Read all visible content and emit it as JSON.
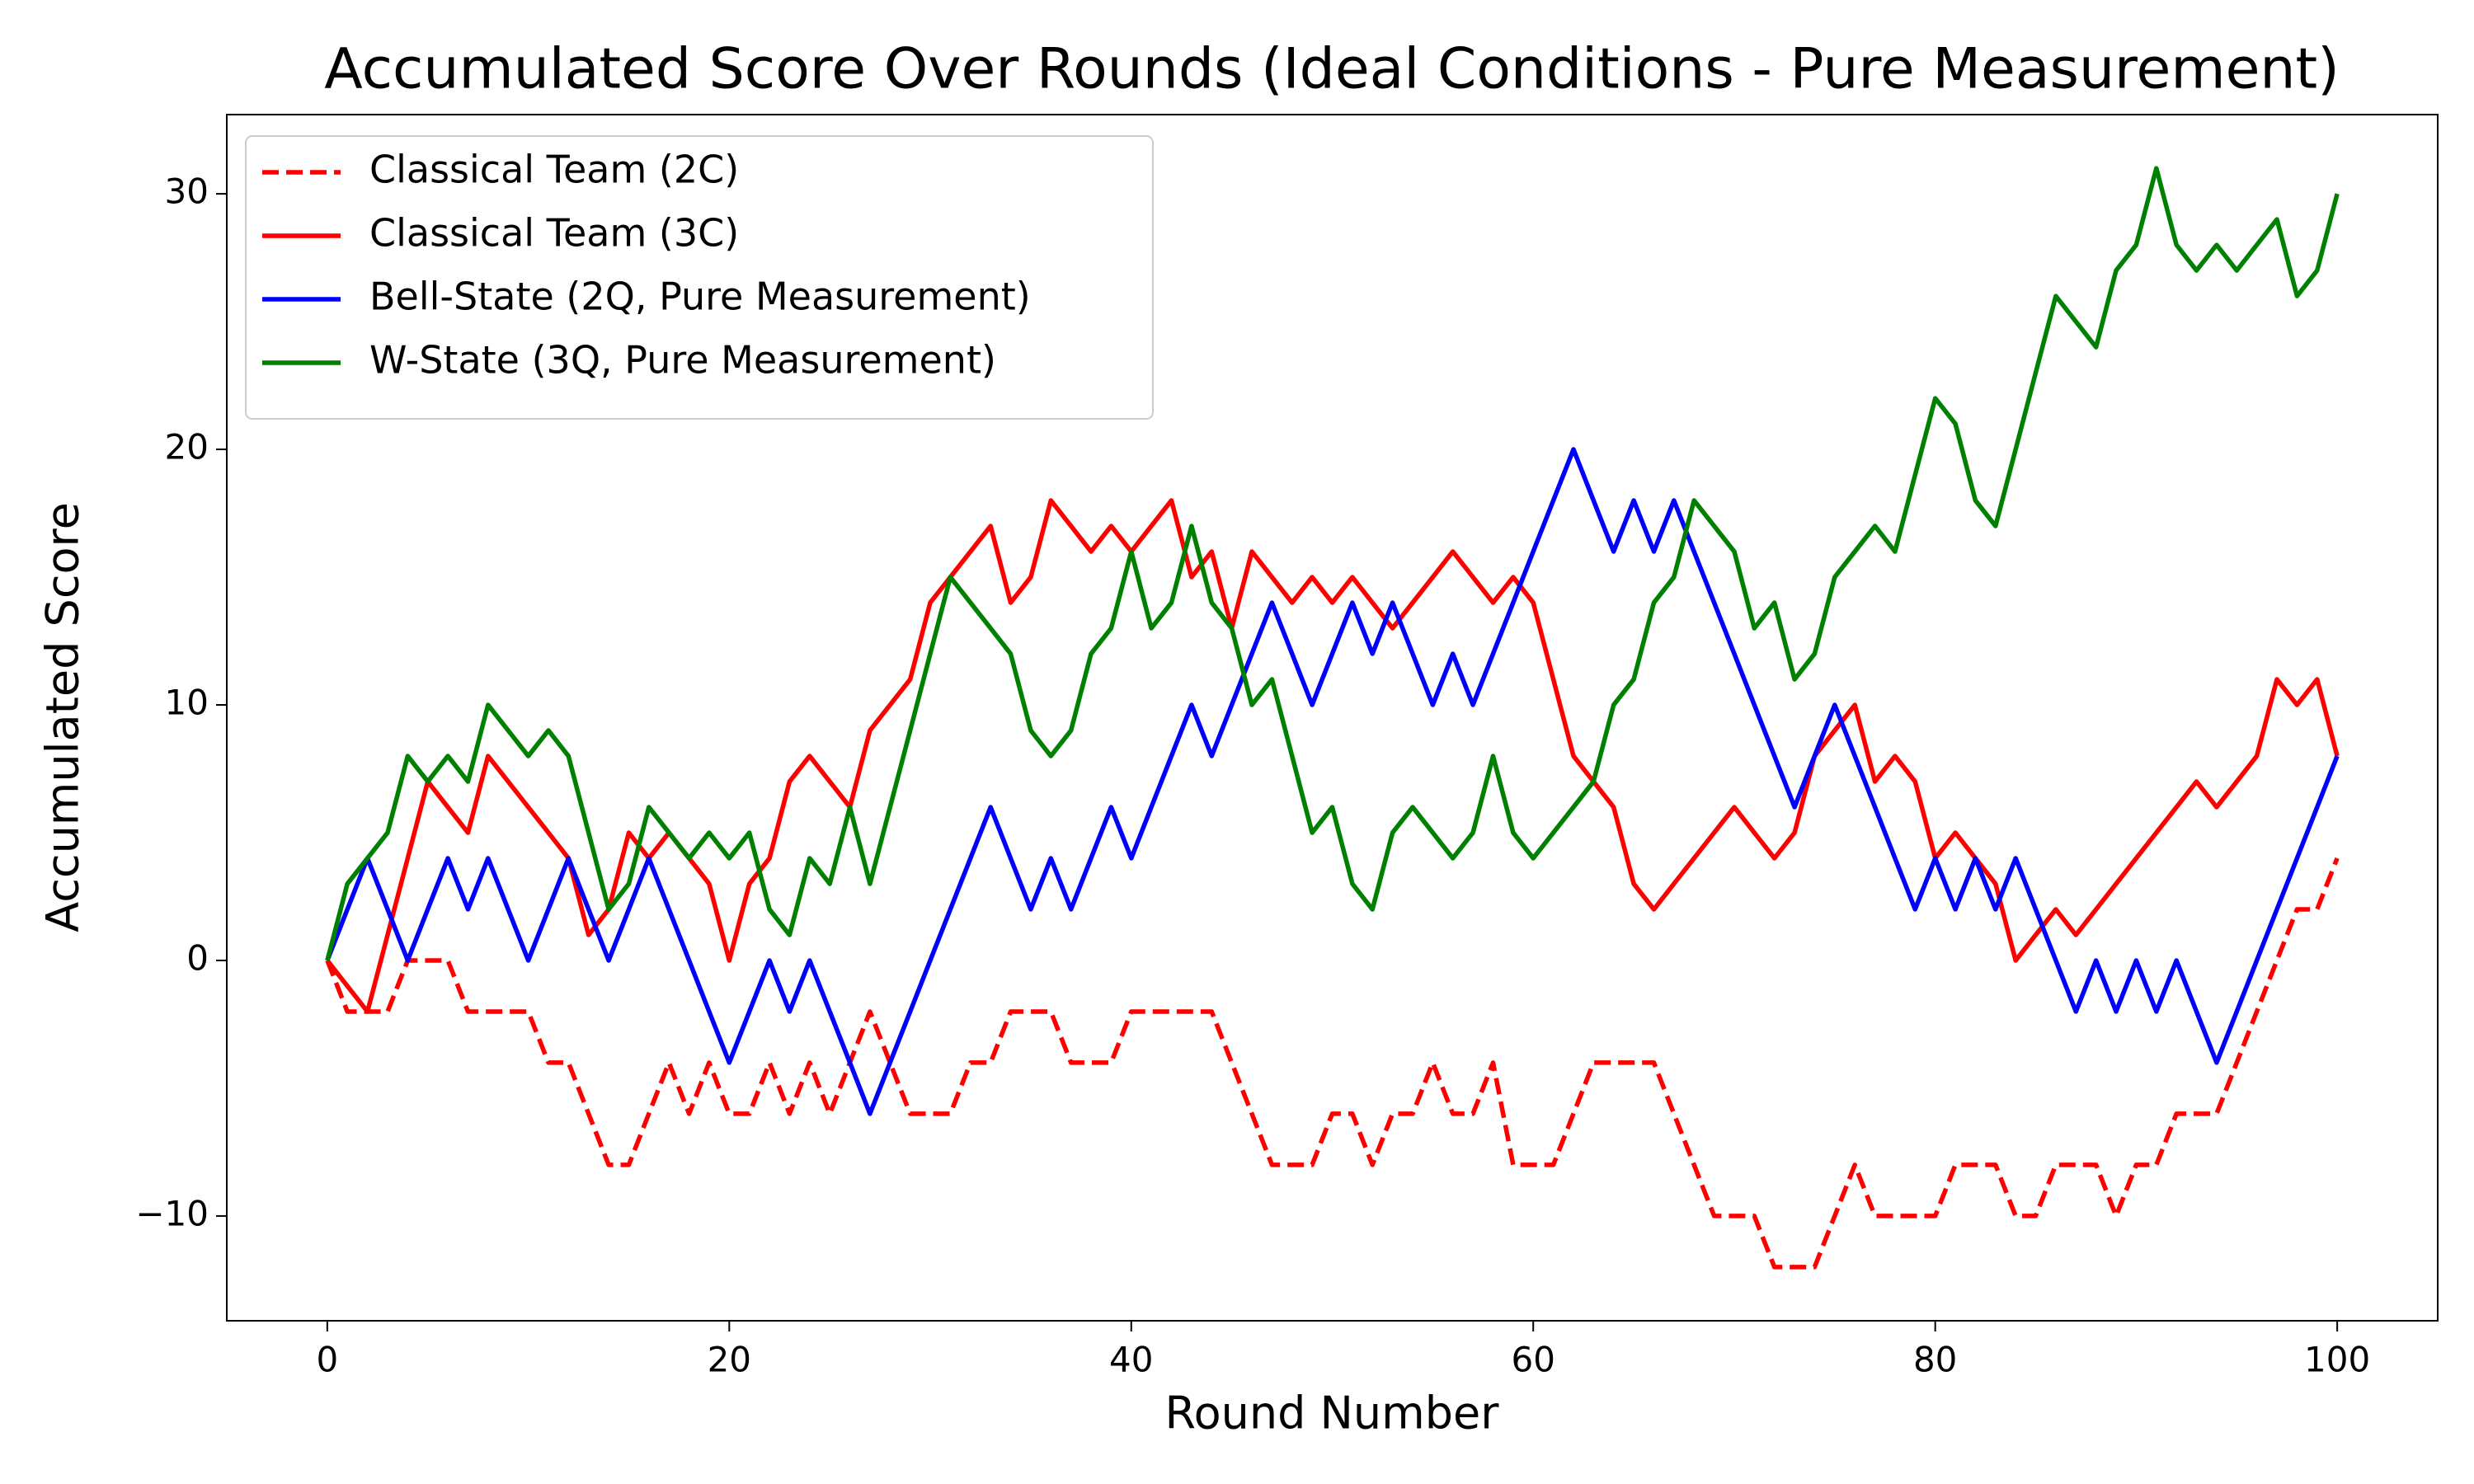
{
  "chart_data": {
    "type": "line",
    "title": "Accumulated Score Over Rounds (Ideal Conditions - Pure Measurement)",
    "x_label": "Round Number",
    "y_label": "Accumulated Score",
    "x": [
      0,
      1,
      2,
      3,
      4,
      5,
      6,
      7,
      8,
      9,
      10,
      11,
      12,
      13,
      14,
      15,
      16,
      17,
      18,
      19,
      20,
      21,
      22,
      23,
      24,
      25,
      26,
      27,
      28,
      29,
      30,
      31,
      32,
      33,
      34,
      35,
      36,
      37,
      38,
      39,
      40,
      41,
      42,
      43,
      44,
      45,
      46,
      47,
      48,
      49,
      50,
      51,
      52,
      53,
      54,
      55,
      56,
      57,
      58,
      59,
      60,
      61,
      62,
      63,
      64,
      65,
      66,
      67,
      68,
      69,
      70,
      71,
      72,
      73,
      74,
      75,
      76,
      77,
      78,
      79,
      80,
      81,
      82,
      83,
      84,
      85,
      86,
      87,
      88,
      89,
      90,
      91,
      92,
      93,
      94,
      95,
      96,
      97,
      98,
      99,
      100
    ],
    "series": [
      {
        "name": "Classical Team (2C)",
        "color": "#ff0000",
        "linestyle": "dashed",
        "values": [
          0,
          -2,
          -2,
          -2,
          0,
          0,
          0,
          -2,
          -2,
          -2,
          -2,
          -4,
          -4,
          -6,
          -8,
          -8,
          -6,
          -4,
          -6,
          -4,
          -6,
          -6,
          -4,
          -6,
          -4,
          -6,
          -4,
          -2,
          -4,
          -6,
          -6,
          -6,
          -4,
          -4,
          -2,
          -2,
          -2,
          -4,
          -4,
          -4,
          -2,
          -2,
          -2,
          -2,
          -2,
          -4,
          -6,
          -8,
          -8,
          -8,
          -6,
          -6,
          -8,
          -6,
          -6,
          -4,
          -6,
          -6,
          -4,
          -8,
          -8,
          -8,
          -6,
          -4,
          -4,
          -4,
          -4,
          -6,
          -8,
          -10,
          -10,
          -10,
          -12,
          -12,
          -12,
          -10,
          -8,
          -10,
          -10,
          -10,
          -10,
          -8,
          -8,
          -8,
          -10,
          -10,
          -8,
          -8,
          -8,
          -10,
          -8,
          -8,
          -6,
          -6,
          -6,
          -4,
          -2,
          0,
          2,
          2,
          4
        ]
      },
      {
        "name": "Classical Team (3C)",
        "color": "#ff0000",
        "linestyle": "solid",
        "values": [
          0,
          -1,
          -2,
          1,
          4,
          7,
          6,
          5,
          8,
          7,
          6,
          5,
          4,
          1,
          2,
          5,
          4,
          5,
          4,
          3,
          0,
          3,
          4,
          7,
          8,
          7,
          6,
          9,
          10,
          11,
          14,
          15,
          16,
          17,
          14,
          15,
          18,
          17,
          16,
          17,
          16,
          17,
          18,
          15,
          16,
          13,
          16,
          15,
          14,
          15,
          14,
          15,
          14,
          13,
          14,
          15,
          16,
          15,
          14,
          15,
          14,
          11,
          8,
          7,
          6,
          3,
          2,
          3,
          4,
          5,
          6,
          5,
          4,
          5,
          8,
          9,
          10,
          7,
          8,
          7,
          4,
          5,
          4,
          3,
          0,
          1,
          2,
          1,
          2,
          3,
          4,
          5,
          6,
          7,
          6,
          7,
          8,
          11,
          10,
          11,
          8
        ]
      },
      {
        "name": "Bell-State (2Q, Pure Measurement)",
        "color": "#0000ff",
        "linestyle": "solid",
        "values": [
          0,
          2,
          4,
          2,
          0,
          2,
          4,
          2,
          4,
          2,
          0,
          2,
          4,
          2,
          0,
          2,
          4,
          2,
          0,
          -2,
          -4,
          -2,
          0,
          -2,
          0,
          -2,
          -4,
          -6,
          -4,
          -2,
          0,
          2,
          4,
          6,
          4,
          2,
          4,
          2,
          4,
          6,
          4,
          6,
          8,
          10,
          8,
          10,
          12,
          14,
          12,
          10,
          12,
          14,
          12,
          14,
          12,
          10,
          12,
          10,
          12,
          14,
          16,
          18,
          20,
          18,
          16,
          18,
          16,
          18,
          16,
          14,
          12,
          10,
          8,
          6,
          8,
          10,
          8,
          6,
          4,
          2,
          4,
          2,
          4,
          2,
          4,
          2,
          0,
          -2,
          0,
          -2,
          0,
          -2,
          0,
          -2,
          -4,
          -2,
          0,
          2,
          4,
          6,
          8
        ]
      },
      {
        "name": "W-State (3Q, Pure Measurement)",
        "color": "#008000",
        "linestyle": "solid",
        "values": [
          0,
          3,
          4,
          5,
          8,
          7,
          8,
          7,
          10,
          9,
          8,
          9,
          8,
          5,
          2,
          3,
          6,
          5,
          4,
          5,
          4,
          5,
          2,
          1,
          4,
          3,
          6,
          3,
          6,
          9,
          12,
          15,
          14,
          13,
          12,
          9,
          8,
          9,
          12,
          13,
          16,
          13,
          14,
          17,
          14,
          13,
          10,
          11,
          8,
          5,
          6,
          3,
          2,
          5,
          6,
          5,
          4,
          5,
          8,
          5,
          4,
          5,
          6,
          7,
          10,
          11,
          14,
          15,
          18,
          17,
          16,
          13,
          14,
          11,
          12,
          15,
          16,
          17,
          16,
          19,
          22,
          21,
          18,
          17,
          20,
          23,
          26,
          25,
          24,
          27,
          28,
          31,
          28,
          27,
          28,
          27,
          28,
          29,
          26,
          27,
          30
        ]
      }
    ],
    "xlim": [
      -5,
      105
    ],
    "ylim": [
      -14.1,
      33.1
    ],
    "xticks": [
      0,
      20,
      40,
      60,
      80,
      100
    ],
    "yticks": [
      {
        "value": -10,
        "label": "−10"
      },
      0,
      10,
      20,
      30
    ],
    "grid": false,
    "legend": "upper left"
  }
}
